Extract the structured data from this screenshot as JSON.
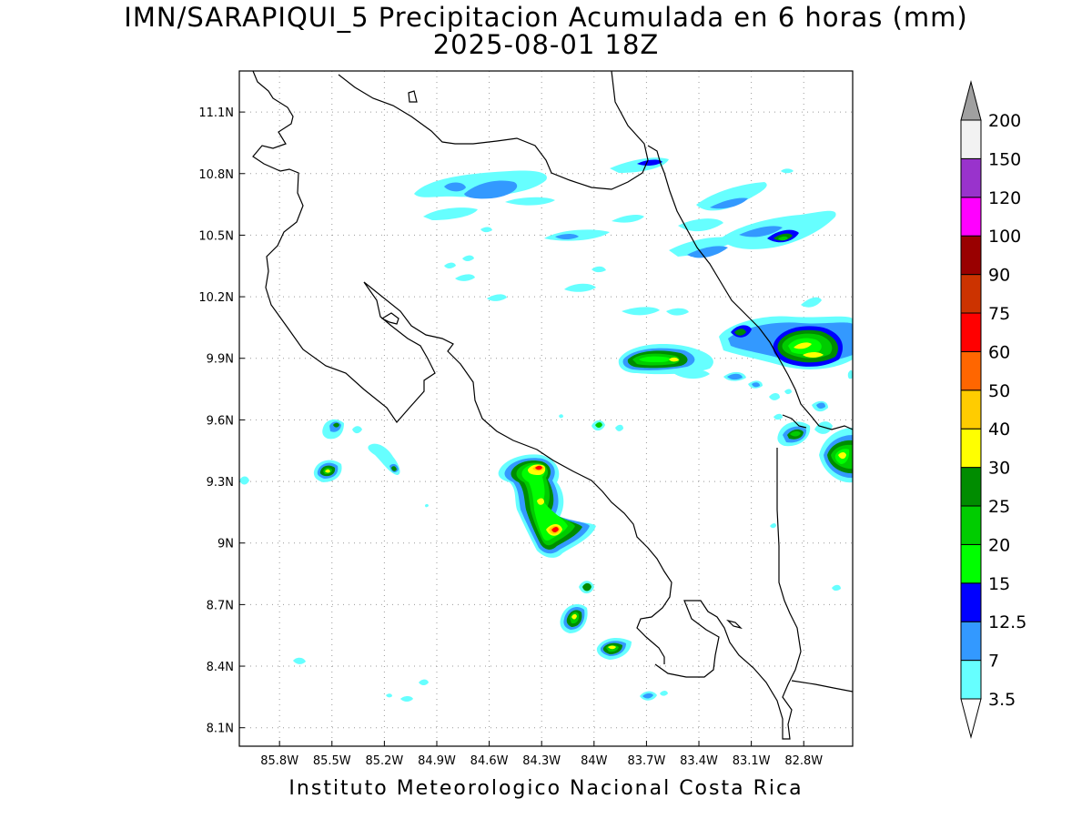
{
  "title_line1": "IMN/SARAPIQUI_5 Precipitacion Acumulada en 6 horas (mm)",
  "title_line2": "2025-08-01 18Z",
  "footer": "Instituto Meteorologico Nacional Costa Rica",
  "map": {
    "lon_range": [
      -86.03,
      -82.52
    ],
    "lat_range": [
      8.01,
      11.3
    ],
    "lon_ticks": [
      {
        "value": -85.8,
        "label": "85.8W"
      },
      {
        "value": -85.5,
        "label": "85.5W"
      },
      {
        "value": -85.2,
        "label": "85.2W"
      },
      {
        "value": -84.9,
        "label": "84.9W"
      },
      {
        "value": -84.6,
        "label": "84.6W"
      },
      {
        "value": -84.3,
        "label": "84.3W"
      },
      {
        "value": -84.0,
        "label": "84W"
      },
      {
        "value": -83.7,
        "label": "83.7W"
      },
      {
        "value": -83.4,
        "label": "83.4W"
      },
      {
        "value": -83.1,
        "label": "83.1W"
      },
      {
        "value": -82.8,
        "label": "82.8W"
      }
    ],
    "lat_ticks": [
      {
        "value": 11.1,
        "label": "11.1N"
      },
      {
        "value": 10.8,
        "label": "10.8N"
      },
      {
        "value": 10.5,
        "label": "10.5N"
      },
      {
        "value": 10.2,
        "label": "10.2N"
      },
      {
        "value": 9.9,
        "label": "9.9N"
      },
      {
        "value": 9.6,
        "label": "9.6N"
      },
      {
        "value": 9.3,
        "label": "9.3N"
      },
      {
        "value": 9.0,
        "label": "9N"
      },
      {
        "value": 8.7,
        "label": "8.7N"
      },
      {
        "value": 8.4,
        "label": "8.4N"
      },
      {
        "value": 8.1,
        "label": "8.1N"
      }
    ],
    "gridlines": "dotted"
  },
  "colorbar": {
    "orientation": "vertical",
    "extend": "both",
    "under_color": "#ffffff",
    "over_color": "#a0a0a0",
    "levels": [
      "3.5",
      "7",
      "12.5",
      "15",
      "20",
      "25",
      "30",
      "40",
      "50",
      "60",
      "75",
      "90",
      "100",
      "120",
      "150",
      "200"
    ],
    "colors": [
      "#66ffff",
      "#3399ff",
      "#0000ff",
      "#00ff00",
      "#00cc00",
      "#008c00",
      "#ffff00",
      "#ffcc00",
      "#ff6600",
      "#ff0000",
      "#cc3300",
      "#990000",
      "#ff00ff",
      "#9933cc",
      "#f2f2f2"
    ]
  }
}
